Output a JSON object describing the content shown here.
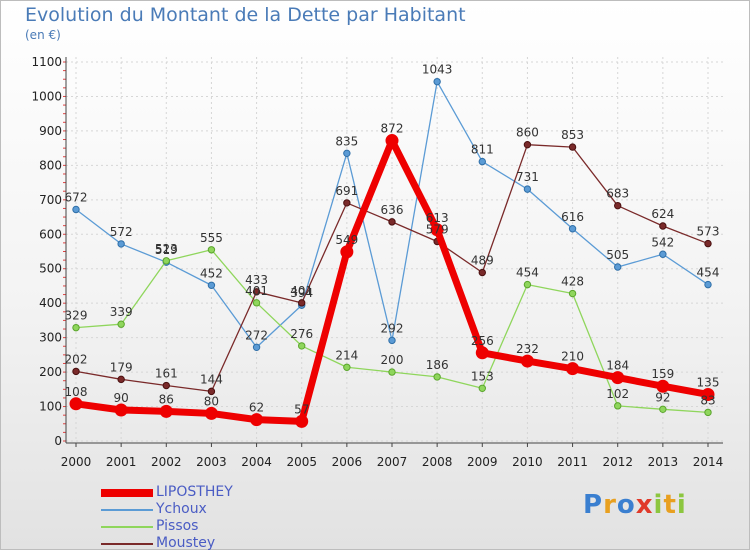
{
  "chart_data": {
    "type": "line",
    "title": "Evolution du Montant de la Dette par Habitant",
    "subtitle": "(en €)",
    "categories": [
      "2000",
      "2001",
      "2002",
      "2003",
      "2004",
      "2005",
      "2006",
      "2007",
      "2008",
      "2009",
      "2010",
      "2011",
      "2012",
      "2013",
      "2014"
    ],
    "y_ticks": [
      0,
      100,
      200,
      300,
      400,
      500,
      600,
      700,
      800,
      900,
      1000,
      1100
    ],
    "ylim": [
      0,
      1100
    ],
    "grid": true,
    "legend_position": "bottom-left",
    "series": [
      {
        "name": "LIPOSTHEY",
        "color": "#ee0000",
        "width": 7,
        "values": [
          108,
          90,
          86,
          80,
          62,
          57,
          549,
          872,
          613,
          256,
          232,
          210,
          184,
          159,
          135
        ]
      },
      {
        "name": "Ychoux",
        "color": "#5b9bd5",
        "width": 1.3,
        "values": [
          672,
          572,
          519,
          452,
          272,
          394,
          835,
          292,
          1043,
          811,
          731,
          616,
          505,
          542,
          454
        ]
      },
      {
        "name": "Pissos",
        "color": "#8fd65c",
        "width": 1.3,
        "values": [
          329,
          339,
          523,
          555,
          401,
          276,
          214,
          200,
          186,
          153,
          454,
          428,
          102,
          92,
          83
        ]
      },
      {
        "name": "Moustey",
        "color": "#7a2a2a",
        "width": 1.3,
        "values": [
          202,
          179,
          161,
          144,
          433,
          401,
          691,
          636,
          579,
          489,
          860,
          853,
          683,
          624,
          573
        ]
      }
    ],
    "labels": {
      "LIPOSTHEY": [
        "108",
        "90",
        "86",
        "80",
        "62",
        "57",
        "549",
        "872",
        "613",
        "256",
        "232",
        "210",
        "184",
        "159",
        "135"
      ],
      "Ychoux": [
        "672",
        "572",
        "519",
        "452",
        "272",
        "394",
        "835",
        "292",
        "1043",
        "811",
        "731",
        "616",
        "505",
        "542",
        "454"
      ],
      "Pissos": [
        "329",
        "339",
        "523",
        "555",
        "401",
        "276",
        "214",
        "200",
        "186",
        "153",
        "454",
        "428",
        "102",
        "92",
        "83"
      ],
      "Moustey": [
        "202",
        "179",
        "161",
        "144",
        "433",
        "401",
        "691",
        "636",
        "579",
        "489",
        "860",
        "853",
        "683",
        "624",
        "573"
      ]
    }
  },
  "logo": {
    "letters": [
      {
        "ch": "P",
        "color": "#3a7fd0"
      },
      {
        "ch": "r",
        "color": "#e8a020"
      },
      {
        "ch": "o",
        "color": "#3a7fd0"
      },
      {
        "ch": "x",
        "color": "#e03a2a"
      },
      {
        "ch": "i",
        "color": "#8cc63f"
      },
      {
        "ch": "t",
        "color": "#e8a020"
      },
      {
        "ch": "i",
        "color": "#8cc63f"
      }
    ]
  }
}
